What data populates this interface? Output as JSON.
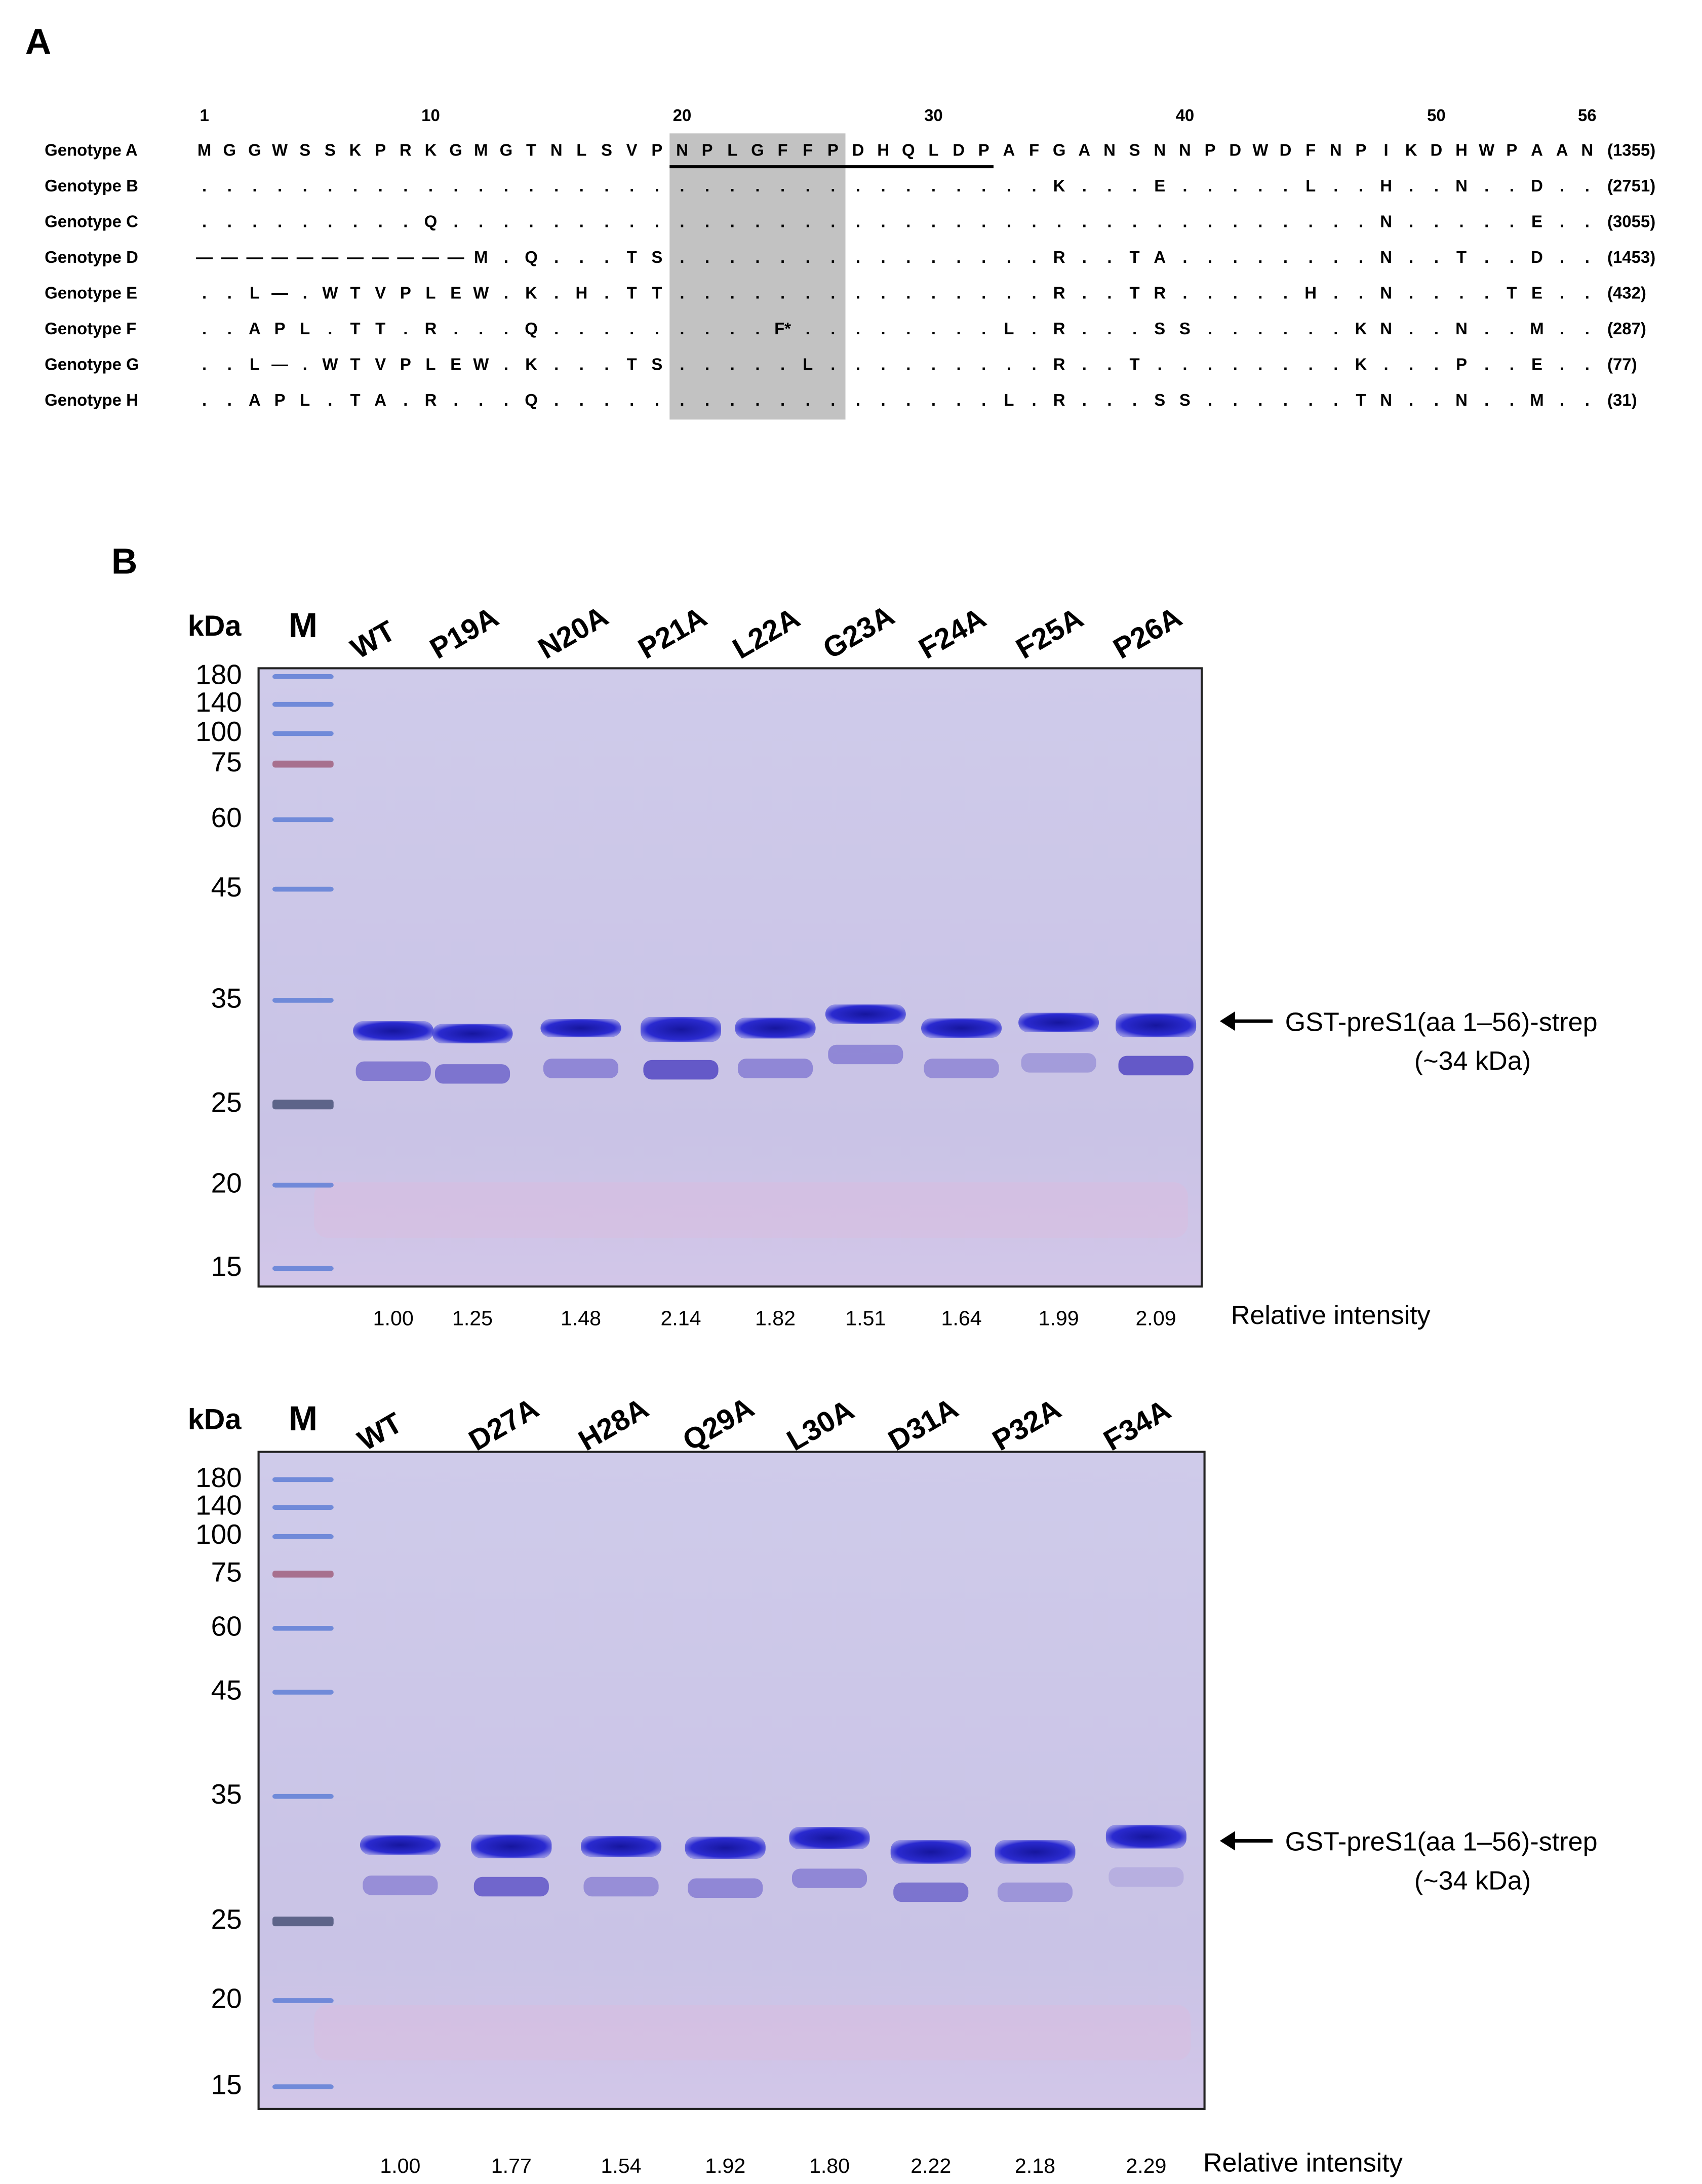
{
  "panel_a": {
    "label": "A",
    "positions": [
      "1",
      "10",
      "20",
      "30",
      "40",
      "50",
      "56"
    ],
    "rows": [
      {
        "name": "Genotype A",
        "count": "(1355)",
        "residues": [
          "M",
          "G",
          "G",
          "W",
          "S",
          "S",
          "K",
          "P",
          "R",
          "K",
          "G",
          "M",
          "G",
          "T",
          "N",
          "L",
          "S",
          "V",
          "P",
          "N",
          "P",
          "L",
          "G",
          "F",
          "F",
          "P",
          "D",
          "H",
          "Q",
          "L",
          "D",
          "P",
          "A",
          "F",
          "G",
          "A",
          "N",
          "S",
          "N",
          "N",
          "P",
          "D",
          "W",
          "D",
          "F",
          "N",
          "P",
          "I",
          "K",
          "D",
          "H",
          "W",
          "P",
          "A",
          "A",
          "N"
        ]
      },
      {
        "name": "Genotype B",
        "count": "(2751)",
        "residues": [
          ".",
          ".",
          ".",
          ".",
          ".",
          ".",
          ".",
          ".",
          ".",
          ".",
          ".",
          ".",
          ".",
          ".",
          ".",
          ".",
          ".",
          ".",
          ".",
          ".",
          ".",
          ".",
          ".",
          ".",
          ".",
          ".",
          ".",
          ".",
          ".",
          ".",
          ".",
          ".",
          ".",
          ".",
          "K",
          ".",
          ".",
          ".",
          "E",
          ".",
          ".",
          ".",
          ".",
          ".",
          "L",
          ".",
          ".",
          "H",
          ".",
          ".",
          "N",
          ".",
          ".",
          "D",
          ".",
          "."
        ]
      },
      {
        "name": "Genotype C",
        "count": "(3055)",
        "residues": [
          ".",
          ".",
          ".",
          ".",
          ".",
          ".",
          ".",
          ".",
          ".",
          "Q",
          ".",
          ".",
          ".",
          ".",
          ".",
          ".",
          ".",
          ".",
          ".",
          ".",
          ".",
          ".",
          ".",
          ".",
          ".",
          ".",
          ".",
          ".",
          ".",
          ".",
          ".",
          ".",
          ".",
          ".",
          ".",
          ".",
          ".",
          ".",
          ".",
          ".",
          ".",
          ".",
          ".",
          ".",
          ".",
          ".",
          ".",
          "N",
          ".",
          ".",
          ".",
          ".",
          ".",
          "E",
          ".",
          "."
        ]
      },
      {
        "name": "Genotype D",
        "count": "(1453)",
        "residues": [
          "—",
          "—",
          "—",
          "—",
          "—",
          "—",
          "—",
          "—",
          "—",
          "—",
          "—",
          "M",
          ".",
          "Q",
          ".",
          ".",
          ".",
          "T",
          "S",
          ".",
          ".",
          ".",
          ".",
          ".",
          ".",
          ".",
          ".",
          ".",
          ".",
          ".",
          ".",
          ".",
          ".",
          ".",
          "R",
          ".",
          ".",
          "T",
          "A",
          ".",
          ".",
          ".",
          ".",
          ".",
          ".",
          ".",
          ".",
          "N",
          ".",
          ".",
          "T",
          ".",
          ".",
          "D",
          ".",
          "."
        ]
      },
      {
        "name": "Genotype E",
        "count": "(432)",
        "residues": [
          ".",
          ".",
          "L",
          "—",
          ".",
          "W",
          "T",
          "V",
          "P",
          "L",
          "E",
          "W",
          ".",
          "K",
          ".",
          "H",
          ".",
          "T",
          "T",
          ".",
          ".",
          ".",
          ".",
          ".",
          ".",
          ".",
          ".",
          ".",
          ".",
          ".",
          ".",
          ".",
          ".",
          ".",
          "R",
          ".",
          ".",
          "T",
          "R",
          ".",
          ".",
          ".",
          ".",
          ".",
          "H",
          ".",
          ".",
          "N",
          ".",
          ".",
          ".",
          ".",
          "T",
          "E",
          ".",
          "."
        ]
      },
      {
        "name": "Genotype F",
        "count": "(287)",
        "residues": [
          ".",
          ".",
          "A",
          "P",
          "L",
          ".",
          "T",
          "T",
          ".",
          "R",
          ".",
          ".",
          ".",
          "Q",
          ".",
          ".",
          ".",
          ".",
          ".",
          ".",
          ".",
          ".",
          ".",
          "F*",
          ".",
          ".",
          ".",
          ".",
          ".",
          ".",
          ".",
          ".",
          "L",
          ".",
          "R",
          ".",
          ".",
          ".",
          "S",
          "S",
          ".",
          ".",
          ".",
          ".",
          ".",
          ".",
          "K",
          "N",
          ".",
          ".",
          "N",
          ".",
          ".",
          "M",
          ".",
          "."
        ]
      },
      {
        "name": "Genotype G",
        "count": "(77)",
        "residues": [
          ".",
          ".",
          "L",
          "—",
          ".",
          "W",
          "T",
          "V",
          "P",
          "L",
          "E",
          "W",
          ".",
          "K",
          ".",
          ".",
          ".",
          "T",
          "S",
          ".",
          ".",
          ".",
          ".",
          ".",
          "L",
          ".",
          ".",
          ".",
          ".",
          ".",
          ".",
          ".",
          ".",
          ".",
          "R",
          ".",
          ".",
          "T",
          ".",
          ".",
          ".",
          ".",
          ".",
          ".",
          ".",
          ".",
          "K",
          ".",
          ".",
          ".",
          "P",
          ".",
          ".",
          "E",
          ".",
          "."
        ]
      },
      {
        "name": "Genotype H",
        "count": "(31)",
        "residues": [
          ".",
          ".",
          "A",
          "P",
          "L",
          ".",
          "T",
          "A",
          ".",
          "R",
          ".",
          ".",
          ".",
          "Q",
          ".",
          ".",
          ".",
          ".",
          ".",
          ".",
          ".",
          ".",
          ".",
          ".",
          ".",
          ".",
          ".",
          ".",
          ".",
          ".",
          ".",
          ".",
          "L",
          ".",
          "R",
          ".",
          ".",
          ".",
          "S",
          "S",
          ".",
          ".",
          ".",
          ".",
          ".",
          ".",
          "T",
          "N",
          ".",
          ".",
          "N",
          ".",
          ".",
          "M",
          ".",
          "."
        ]
      }
    ]
  },
  "panel_b": {
    "label": "B",
    "gels": [
      {
        "kda_label": "kDa",
        "marker_label": "M",
        "lanes": [
          "WT",
          "P19A",
          "N20A",
          "P21A",
          "L22A",
          "G23A",
          "F24A",
          "F25A",
          "P26A"
        ],
        "markers": [
          "180",
          "140",
          "100",
          "75",
          "60",
          "45",
          "35",
          "25",
          "20",
          "15"
        ],
        "band_label": "GST-preS1(aa 1–56)-strep",
        "band_size": "(~34 kDa)",
        "intensity_label": "Relative intensity",
        "intensities": [
          "1.00",
          "1.25",
          "1.48",
          "2.14",
          "1.82",
          "1.51",
          "1.64",
          "1.99",
          "2.09"
        ]
      },
      {
        "kda_label": "kDa",
        "marker_label": "M",
        "lanes": [
          "WT",
          "D27A",
          "H28A",
          "Q29A",
          "L30A",
          "D31A",
          "P32A",
          "F34A"
        ],
        "markers": [
          "180",
          "140",
          "100",
          "75",
          "60",
          "45",
          "35",
          "25",
          "20",
          "15"
        ],
        "band_label": "GST-preS1(aa 1–56)-strep",
        "band_size": "(~34 kDa)",
        "intensity_label": "Relative intensity",
        "intensities": [
          "1.00",
          "1.77",
          "1.54",
          "1.92",
          "1.80",
          "2.22",
          "2.18",
          "2.29"
        ]
      }
    ]
  }
}
